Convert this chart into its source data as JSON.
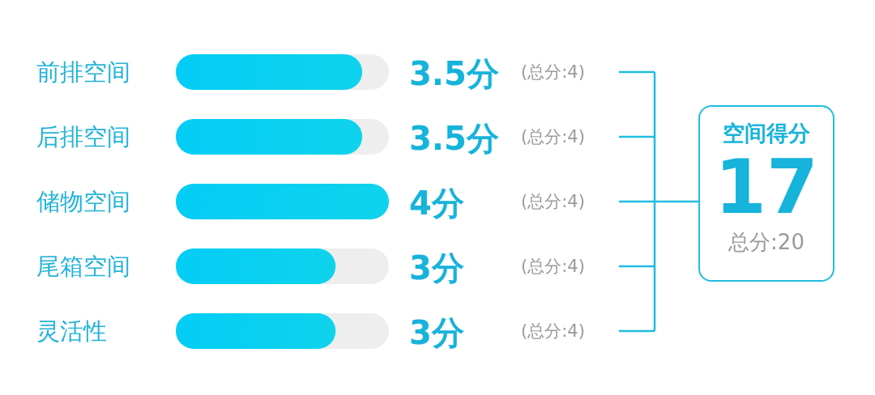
{
  "chart_data": {
    "type": "bar",
    "orientation": "horizontal",
    "categories": [
      "前排空间",
      "后排空间",
      "储物空间",
      "尾箱空间",
      "灵活性"
    ],
    "values": [
      3.5,
      3.5,
      4,
      3,
      3
    ],
    "value_labels": [
      "3.5分",
      "3.5分",
      "4分",
      "3分",
      "3分"
    ],
    "color": "#0fd3ec",
    "xlim": [
      0,
      4
    ],
    "tick_labels": "y",
    "annotations": [
      "(总分:4)",
      "(总分:4)",
      "(总分:4)",
      "(总分:4)",
      "(总分:4)",
      "空间得分",
      "17",
      "总分:20"
    ]
  }
}
